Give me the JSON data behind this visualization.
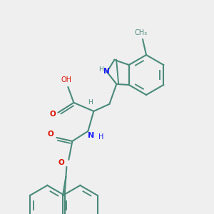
{
  "bg_color": "#efefef",
  "bond_color": "#4a8a7a",
  "n_color": "#1a1aff",
  "o_color": "#dd1100",
  "lw": 1.5,
  "fig_size": [
    3.0,
    3.0
  ],
  "dpi": 100,
  "xlim": [
    0,
    300
  ],
  "ylim": [
    0,
    300
  ]
}
